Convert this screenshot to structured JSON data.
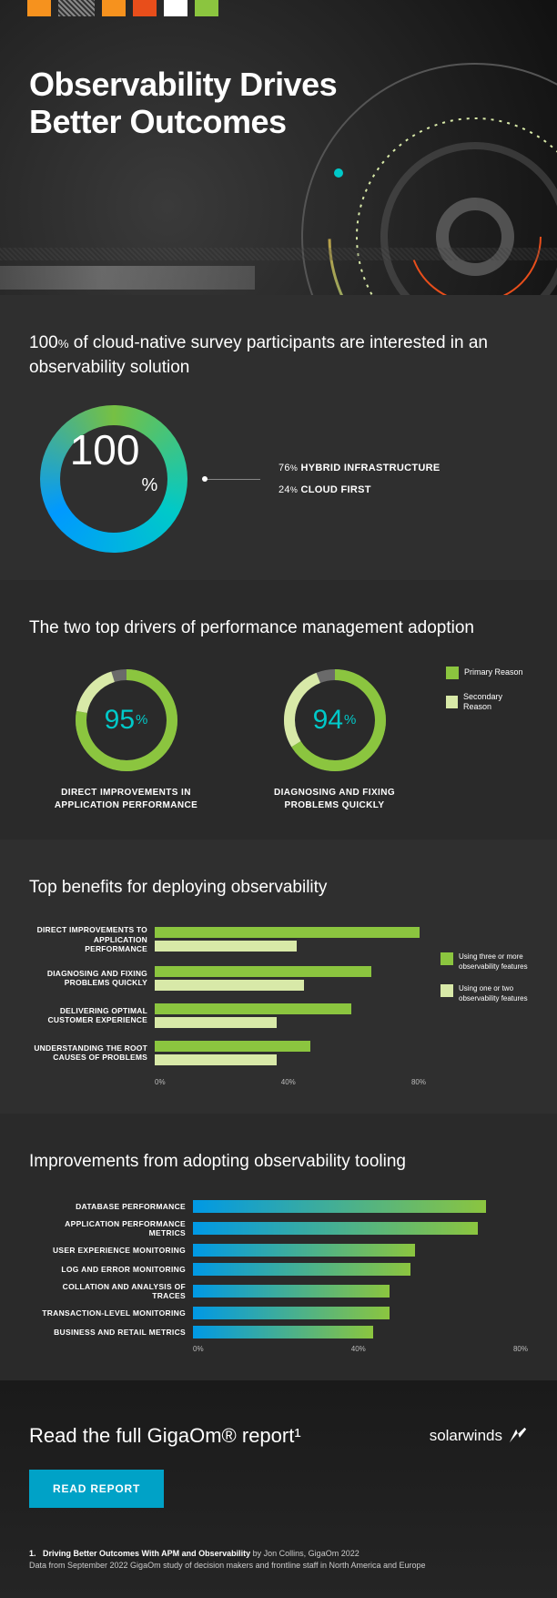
{
  "colors": {
    "green": "#8bc53f",
    "lightgreen": "#d8e9a8",
    "teal": "#00c9c9",
    "blue": "#0099e5",
    "orange": "#f6921e",
    "gray": "#6a6a6a",
    "cta": "#00a2c7"
  },
  "hero": {
    "title_line1": "Observability Drives",
    "title_line2": "Better Outcomes",
    "stripes": [
      "#f6921e",
      "#888888",
      "#f6921e",
      "#e84e1b",
      "#ffffff",
      "#8bc53f"
    ]
  },
  "sec1": {
    "heading_prefix": "100",
    "heading_pct": "%",
    "heading_rest": " of cloud-native survey participants are interested in an observability solution",
    "center_value": "100",
    "center_pct": "%",
    "breakdown": [
      {
        "pct": "76",
        "label": "HYBRID INFRASTRUCTURE"
      },
      {
        "pct": "24",
        "label": "CLOUD FIRST"
      }
    ]
  },
  "sec2": {
    "heading": "The two top drivers of performance management adoption",
    "ring_stroke_primary": "#8bc53f",
    "ring_stroke_secondary": "#d8e9a8",
    "ring_stroke_track": "#6a6a6a",
    "value_color": "#00c9c9",
    "drivers": [
      {
        "value": 95,
        "primary_deg": 280,
        "secondary_deg": 342,
        "label_l1": "DIRECT IMPROVEMENTS IN",
        "label_l2": "APPLICATION PERFORMANCE"
      },
      {
        "value": 94,
        "primary_deg": 238,
        "secondary_deg": 338,
        "label_l1": "DIAGNOSING AND FIXING",
        "label_l2": "PROBLEMS QUICKLY"
      }
    ],
    "legend": [
      {
        "color": "#8bc53f",
        "text": "Primary Reason"
      },
      {
        "color": "#d8e9a8",
        "text": "Secondary Reason"
      }
    ]
  },
  "sec3": {
    "heading": "Top benefits for deploying observability",
    "xmax": 80,
    "axis_ticks": [
      "0%",
      "40%",
      "80%"
    ],
    "bar_colors": {
      "a": "#8bc53f",
      "b": "#d8e9a8"
    },
    "items": [
      {
        "label_l1": "DIRECT IMPROVEMENTS TO",
        "label_l2": "APPLICATION PERFORMANCE",
        "a": 78,
        "b": 42
      },
      {
        "label_l1": "DIAGNOSING AND FIXING",
        "label_l2": "PROBLEMS QUICKLY",
        "a": 64,
        "b": 44
      },
      {
        "label_l1": "DELIVERING OPTIMAL",
        "label_l2": "CUSTOMER EXPERIENCE",
        "a": 58,
        "b": 36
      },
      {
        "label_l1": "UNDERSTANDING THE ROOT",
        "label_l2": "CAUSES OF PROBLEMS",
        "a": 46,
        "b": 36
      }
    ],
    "legend": [
      {
        "color": "#8bc53f",
        "text": "Using three or more observability features"
      },
      {
        "color": "#d8e9a8",
        "text": "Using one or two observability features"
      }
    ]
  },
  "sec4": {
    "heading": "Improvements from adopting observability tooling",
    "xmax": 80,
    "axis_ticks": [
      "0%",
      "40%",
      "80%"
    ],
    "gradient_from": "#0099e5",
    "gradient_to": "#8bc53f",
    "items": [
      {
        "label": "DATABASE PERFORMANCE",
        "value": 70
      },
      {
        "label": "APPLICATION PERFORMANCE METRICS",
        "value": 68
      },
      {
        "label": "USER EXPERIENCE MONITORING",
        "value": 53
      },
      {
        "label": "LOG AND ERROR MONITORING",
        "value": 52
      },
      {
        "label": "COLLATION AND ANALYSIS OF TRACES",
        "value": 47
      },
      {
        "label": "TRANSACTION-LEVEL MONITORING",
        "value": 47
      },
      {
        "label": "BUSINESS AND RETAIL METRICS",
        "value": 43
      }
    ]
  },
  "footer": {
    "heading": "Read the full GigaOm® report¹",
    "brand": "solarwinds",
    "cta": "READ REPORT",
    "note_num": "1.",
    "note_title": "Driving Better Outcomes With APM and Observability",
    "note_by": " by Jon Collins, GigaOm 2022",
    "note_data": "Data from September 2022 GigaOm study of decision makers and frontline staff in North America and Europe"
  }
}
